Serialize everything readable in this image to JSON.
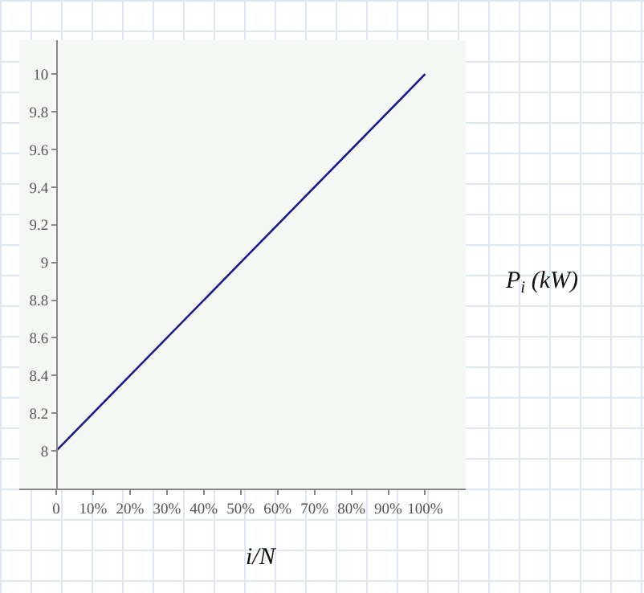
{
  "chart_data": {
    "type": "line",
    "xlabel": "i/N",
    "ylabel": "P$_{i}$ (kW)",
    "x": [
      0,
      50,
      100
    ],
    "series": [
      {
        "color": "#1a1a8c",
        "values": [
          8,
          9,
          10
        ]
      }
    ],
    "xlim": [
      -10,
      111
    ],
    "ylim": [
      7.8,
      10.18
    ],
    "xticks": [
      0,
      {
        "value": 10,
        "label": "10%"
      },
      {
        "value": 20,
        "label": "20%"
      },
      {
        "value": 30,
        "label": "30%"
      },
      {
        "value": 40,
        "label": "40%"
      },
      {
        "value": 50,
        "label": "50%"
      },
      {
        "value": 60,
        "label": "60%"
      },
      {
        "value": 70,
        "label": "70%"
      },
      {
        "value": 80,
        "label": "80%"
      },
      {
        "value": 90,
        "label": "90%"
      },
      {
        "value": 100,
        "label": "100%"
      }
    ],
    "yticks": [
      8,
      8.2,
      8.4,
      8.6,
      8.8,
      9,
      9.2,
      9.4,
      9.6,
      9.8,
      10
    ],
    "grid": false,
    "marker": "none",
    "line_style": "solid"
  }
}
